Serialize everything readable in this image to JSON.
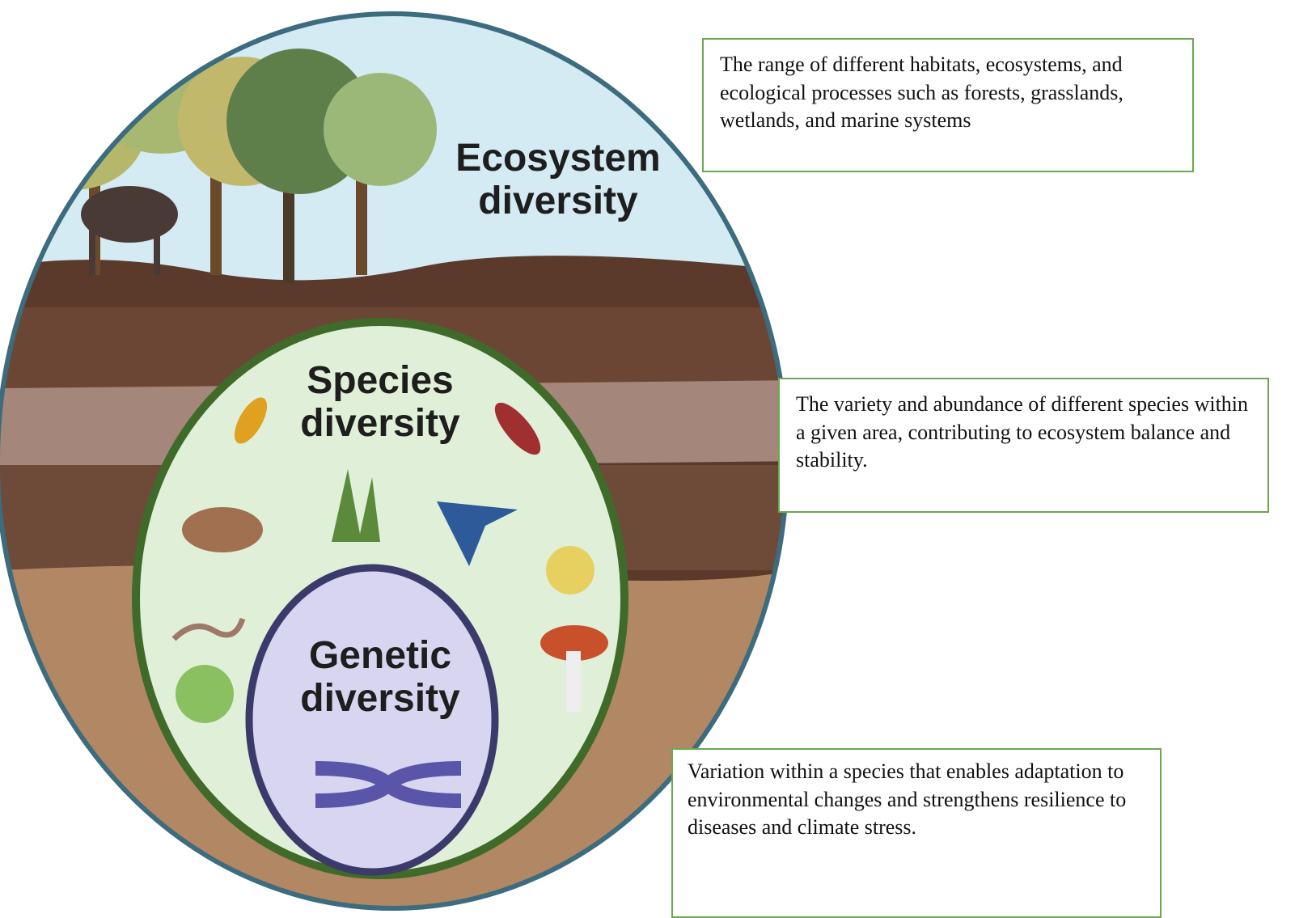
{
  "levels": [
    {
      "label": "Ecosystem diversity",
      "description": "The range of different habitats, ecosystems, and ecological processes such as forests, grasslands, wetlands, and marine systems"
    },
    {
      "label": "Species diversity",
      "description": "The variety and abundance of different species within a given area, contributing to ecosystem balance and stability."
    },
    {
      "label": "Genetic diversity",
      "description": "Variation within a species that enables adaptation to environmental changes and strengthens resilience to diseases and climate stress."
    }
  ]
}
